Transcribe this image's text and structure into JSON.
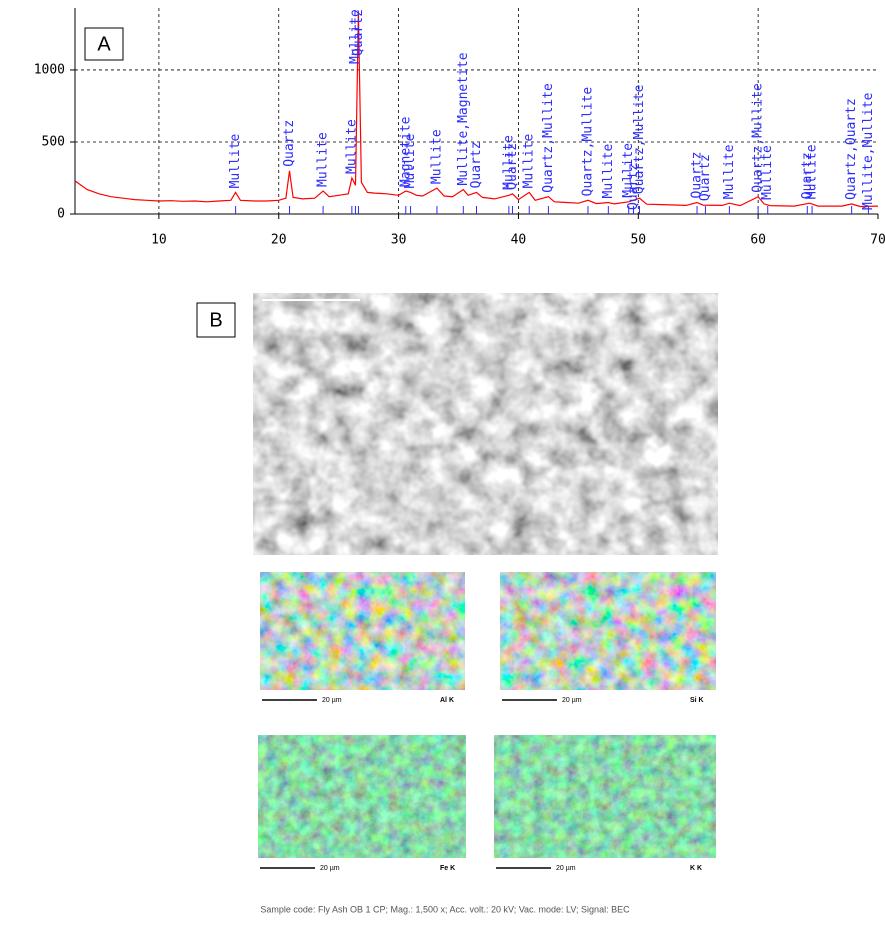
{
  "chart_data": {
    "type": "line",
    "color": "#ff0000",
    "annotation_color": "#2b2bff",
    "grid": true,
    "xlim": [
      3,
      70
    ],
    "xticks": [
      10,
      20,
      30,
      40,
      50,
      60,
      70
    ],
    "ylim": [
      0,
      1430
    ],
    "yticks": [
      0,
      500,
      1000
    ],
    "x": [
      3,
      4,
      5,
      6,
      7,
      8,
      9,
      10,
      11,
      12,
      13,
      14,
      15,
      16,
      16.4,
      16.8,
      18,
      19,
      20,
      20.6,
      20.9,
      21.2,
      22,
      23,
      23.7,
      24.2,
      25,
      25.8,
      26.1,
      26.4,
      26.65,
      26.9,
      27.4,
      28,
      29,
      30,
      30.6,
      31,
      31.5,
      32,
      33.2,
      33.8,
      34.5,
      35.4,
      35.8,
      36.5,
      37,
      38,
      39.2,
      39.5,
      40,
      40.9,
      41.4,
      42.5,
      43,
      44,
      45,
      45.8,
      46.5,
      47.5,
      48,
      49.2,
      50.1,
      50.7,
      52,
      54,
      54.9,
      55.4,
      57,
      57.6,
      58.5,
      60,
      60.5,
      61,
      63,
      64.3,
      65,
      67,
      67.8,
      68.5,
      70
    ],
    "values": [
      230,
      170,
      140,
      120,
      110,
      100,
      95,
      90,
      92,
      88,
      90,
      85,
      90,
      95,
      150,
      95,
      90,
      90,
      95,
      110,
      300,
      115,
      105,
      110,
      160,
      120,
      130,
      140,
      250,
      200,
      1400,
      220,
      150,
      145,
      140,
      130,
      160,
      150,
      130,
      125,
      180,
      125,
      120,
      170,
      130,
      150,
      115,
      105,
      130,
      140,
      100,
      150,
      95,
      120,
      85,
      80,
      75,
      95,
      72,
      80,
      70,
      85,
      110,
      68,
      65,
      60,
      80,
      62,
      60,
      75,
      58,
      120,
      70,
      58,
      55,
      75,
      55,
      55,
      70,
      52,
      55
    ],
    "annotations": [
      {
        "x": 16.4,
        "text": "Mullite"
      },
      {
        "x": 20.9,
        "text": "Quartz"
      },
      {
        "x": 23.7,
        "text": "Mullite"
      },
      {
        "x": 26.1,
        "text": "Mullite"
      },
      {
        "x": 26.4,
        "text": "Mullite"
      },
      {
        "x": 26.65,
        "text": "Quartz"
      },
      {
        "x": 30.6,
        "text": "Magnetite"
      },
      {
        "x": 31.0,
        "text": "Mullite"
      },
      {
        "x": 33.2,
        "text": "Mullite"
      },
      {
        "x": 35.4,
        "text": "Mullite,Magnetite"
      },
      {
        "x": 36.5,
        "text": "Quartz"
      },
      {
        "x": 39.2,
        "text": "Mullite"
      },
      {
        "x": 39.5,
        "text": "Quartz"
      },
      {
        "x": 40.9,
        "text": "Mullite"
      },
      {
        "x": 42.5,
        "text": "Quartz,Mullite"
      },
      {
        "x": 45.8,
        "text": "Quartz,Mullite"
      },
      {
        "x": 47.5,
        "text": "Mullite"
      },
      {
        "x": 49.2,
        "text": "Mullite"
      },
      {
        "x": 49.6,
        "text": "Quartz"
      },
      {
        "x": 50.1,
        "text": "Quartz,Mullite"
      },
      {
        "x": 54.9,
        "text": "Quartz"
      },
      {
        "x": 55.6,
        "text": "Quartz"
      },
      {
        "x": 57.6,
        "text": "Mullite"
      },
      {
        "x": 60.0,
        "text": "Quartz,Mullite"
      },
      {
        "x": 60.8,
        "text": "Mullite"
      },
      {
        "x": 64.1,
        "text": "Quartz"
      },
      {
        "x": 64.5,
        "text": "Mullite"
      },
      {
        "x": 67.8,
        "text": "Quartz,Quartz"
      },
      {
        "x": 69.2,
        "text": "Mullite,Mullite"
      }
    ]
  },
  "panel_labels": [
    "A",
    "B"
  ],
  "sem": {
    "maps": [
      "Al K",
      "Si K",
      "Fe K",
      "K K"
    ],
    "scale_bar": "20 µm",
    "caption": "Sample code: Fly Ash OB 1 CP; Mag.: 1,500 x; Acc. volt.: 20 kV; Vac. mode: LV; Signal: BEC"
  }
}
